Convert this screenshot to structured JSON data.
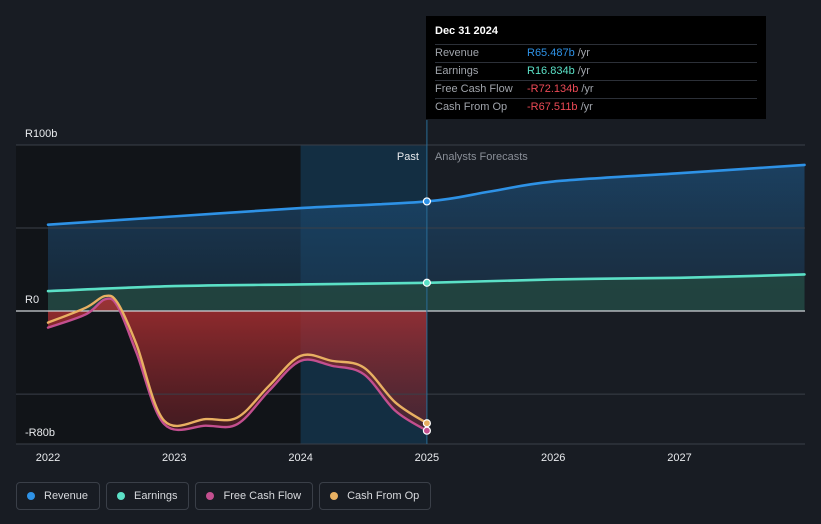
{
  "chart_data": {
    "type": "line",
    "x_ticks": [
      "2022",
      "2023",
      "2024",
      "2025",
      "2026",
      "2027"
    ],
    "y_ticks": [
      "R100b",
      "R0",
      "-R80b"
    ],
    "y_range": [
      -80,
      100
    ],
    "region_labels": {
      "past": "Past",
      "forecast": "Analysts Forecasts"
    },
    "series": [
      {
        "name": "Revenue",
        "color": "#2e92e6",
        "fill": true,
        "points": [
          [
            2022.0,
            52
          ],
          [
            2023.0,
            57
          ],
          [
            2024.0,
            62
          ],
          [
            2025.0,
            66
          ],
          [
            2025.5,
            72
          ],
          [
            2026.0,
            78
          ],
          [
            2027.0,
            83
          ],
          [
            2027.99,
            88
          ]
        ]
      },
      {
        "name": "Earnings",
        "color": "#5be0c6",
        "fill": true,
        "points": [
          [
            2022.0,
            12
          ],
          [
            2023.0,
            15
          ],
          [
            2024.0,
            16
          ],
          [
            2025.0,
            17
          ],
          [
            2026.0,
            19
          ],
          [
            2027.0,
            20
          ],
          [
            2027.99,
            22
          ]
        ]
      },
      {
        "name": "Free Cash Flow",
        "color": "#c34f8f",
        "fill": false,
        "points": [
          [
            2022.0,
            -10
          ],
          [
            2022.3,
            -2
          ],
          [
            2022.45,
            7
          ],
          [
            2022.55,
            3
          ],
          [
            2022.7,
            -25
          ],
          [
            2022.92,
            -68
          ],
          [
            2023.25,
            -69
          ],
          [
            2023.5,
            -68
          ],
          [
            2023.75,
            -48
          ],
          [
            2024.0,
            -30
          ],
          [
            2024.25,
            -33
          ],
          [
            2024.5,
            -38
          ],
          [
            2024.75,
            -60
          ],
          [
            2025.0,
            -72
          ]
        ]
      },
      {
        "name": "Cash From Op",
        "color": "#e8b062",
        "fill": false,
        "points": [
          [
            2022.0,
            -7
          ],
          [
            2022.3,
            2
          ],
          [
            2022.45,
            9
          ],
          [
            2022.55,
            5
          ],
          [
            2022.7,
            -20
          ],
          [
            2022.92,
            -66
          ],
          [
            2023.25,
            -65
          ],
          [
            2023.5,
            -64
          ],
          [
            2023.75,
            -45
          ],
          [
            2024.0,
            -27
          ],
          [
            2024.25,
            -30
          ],
          [
            2024.5,
            -34
          ],
          [
            2024.75,
            -55
          ],
          [
            2025.0,
            -67.5
          ]
        ]
      }
    ],
    "highlight_x": 2025.0
  },
  "tooltip": {
    "date": "Dec 31 2024",
    "rows": [
      {
        "label": "Revenue",
        "value": "R65.487b",
        "unit": "/yr",
        "color": "#2e92e6"
      },
      {
        "label": "Earnings",
        "value": "R16.834b",
        "unit": "/yr",
        "color": "#5be0c6"
      },
      {
        "label": "Free Cash Flow",
        "value": "-R72.134b",
        "unit": "/yr",
        "color": "#ec4a56"
      },
      {
        "label": "Cash From Op",
        "value": "-R67.511b",
        "unit": "/yr",
        "color": "#ec4a56"
      }
    ]
  },
  "legend": [
    {
      "label": "Revenue",
      "color": "#2e92e6"
    },
    {
      "label": "Earnings",
      "color": "#5be0c6"
    },
    {
      "label": "Free Cash Flow",
      "color": "#c34f8f"
    },
    {
      "label": "Cash From Op",
      "color": "#e8b062"
    }
  ]
}
